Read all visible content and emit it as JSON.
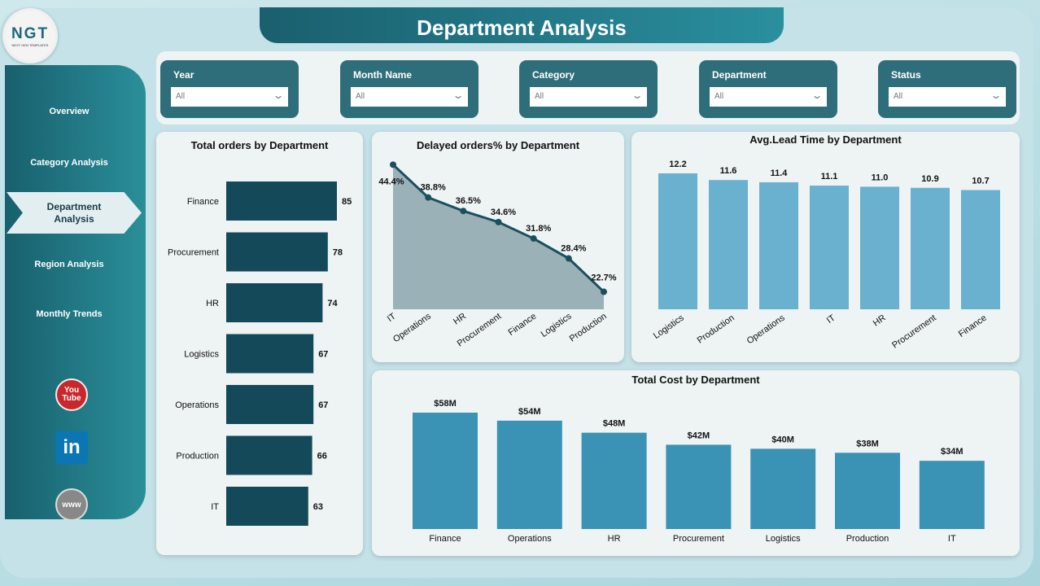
{
  "title": "Department Analysis",
  "logo": {
    "text": "NGT",
    "sub": "NEXT GEN TEMPLATES"
  },
  "sidebar": {
    "items": [
      {
        "label": "Overview"
      },
      {
        "label": "Category Analysis"
      },
      {
        "label": "Department Analysis",
        "active": true
      },
      {
        "label": "Region Analysis"
      },
      {
        "label": "Monthly Trends"
      }
    ],
    "social": [
      {
        "icon": "youtube-icon",
        "label": "You Tube"
      },
      {
        "icon": "linkedin-icon",
        "label": "in"
      },
      {
        "icon": "globe-icon",
        "label": "www"
      }
    ]
  },
  "filters": [
    {
      "label": "Year",
      "value": "All"
    },
    {
      "label": "Month Name",
      "value": "All"
    },
    {
      "label": "Category",
      "value": "All"
    },
    {
      "label": "Department",
      "value": "All"
    },
    {
      "label": "Status",
      "value": "All"
    }
  ],
  "chart_data": [
    {
      "type": "bar",
      "orientation": "horizontal",
      "title": "Total orders by Department",
      "categories": [
        "Finance",
        "Procurement",
        "HR",
        "Logistics",
        "Operations",
        "Production",
        "IT"
      ],
      "values": [
        85,
        78,
        74,
        67,
        67,
        66,
        63
      ],
      "labels": [
        "85",
        "78",
        "74",
        "67",
        "67",
        "66",
        "63"
      ],
      "xlim": [
        0,
        85
      ]
    },
    {
      "type": "area",
      "title": "Delayed orders% by Department",
      "categories": [
        "IT",
        "Operations",
        "HR",
        "Procurement",
        "Finance",
        "Logistics",
        "Production"
      ],
      "values": [
        44.4,
        38.8,
        36.5,
        34.6,
        31.8,
        28.4,
        22.7
      ],
      "labels": [
        "44.4%",
        "38.8%",
        "36.5%",
        "34.6%",
        "31.8%",
        "28.4%",
        "22.7%"
      ],
      "ylim": [
        20,
        45
      ],
      "color": "#1c4f5e"
    },
    {
      "type": "bar",
      "title": "Avg.Lead Time by Department",
      "categories": [
        "Logistics",
        "Production",
        "Operations",
        "IT",
        "HR",
        "Procurement",
        "Finance"
      ],
      "values": [
        12.2,
        11.6,
        11.4,
        11.1,
        11.0,
        10.9,
        10.7
      ],
      "labels": [
        "12.2",
        "11.6",
        "11.4",
        "11.1",
        "11.0",
        "10.9",
        "10.7"
      ],
      "ylim": [
        0,
        12.2
      ],
      "color": "#6ab0cf"
    },
    {
      "type": "bar",
      "title": "Total Cost by Department",
      "categories": [
        "Finance",
        "Operations",
        "HR",
        "Procurement",
        "Logistics",
        "Production",
        "IT"
      ],
      "values": [
        58,
        54,
        48,
        42,
        40,
        38,
        34
      ],
      "labels": [
        "$58M",
        "$54M",
        "$48M",
        "$42M",
        "$40M",
        "$38M",
        "$34M"
      ],
      "ylim": [
        0,
        58
      ],
      "color": "#3a93b5"
    }
  ]
}
